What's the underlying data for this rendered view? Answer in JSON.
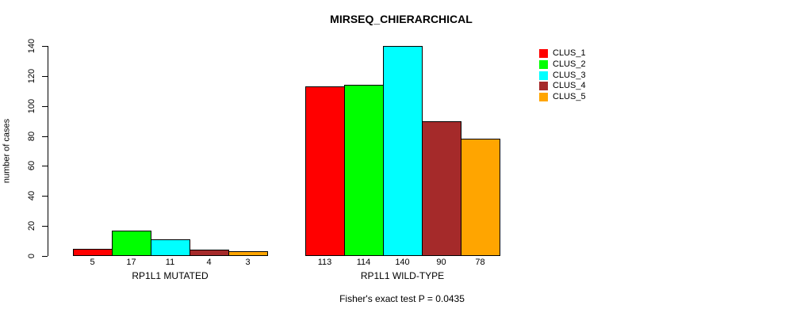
{
  "chart_data": {
    "type": "bar",
    "title": "MIRSEQ_CHIERARCHICAL",
    "ylabel": "number of cases",
    "xlabel": "",
    "ylim": [
      0,
      140
    ],
    "yticks": [
      0,
      20,
      40,
      60,
      80,
      100,
      120,
      140
    ],
    "grid": false,
    "legend_position": "right",
    "categories": [
      "RP1L1 MUTATED",
      "RP1L1 WILD-TYPE"
    ],
    "series": [
      {
        "name": "CLUS_1",
        "color": "#FF0000",
        "values": [
          5,
          113
        ]
      },
      {
        "name": "CLUS_2",
        "color": "#00FF00",
        "values": [
          17,
          114
        ]
      },
      {
        "name": "CLUS_3",
        "color": "#00FFFF",
        "values": [
          11,
          140
        ]
      },
      {
        "name": "CLUS_4",
        "color": "#A52A2A",
        "values": [
          4,
          90
        ]
      },
      {
        "name": "CLUS_5",
        "color": "#FFA500",
        "values": [
          3,
          78
        ]
      }
    ],
    "bar_value_labels": [
      [
        5,
        17,
        11,
        4,
        3
      ],
      [
        113,
        114,
        140,
        90,
        78
      ]
    ],
    "footnote": "Fisher's exact test P = 0.0435"
  }
}
